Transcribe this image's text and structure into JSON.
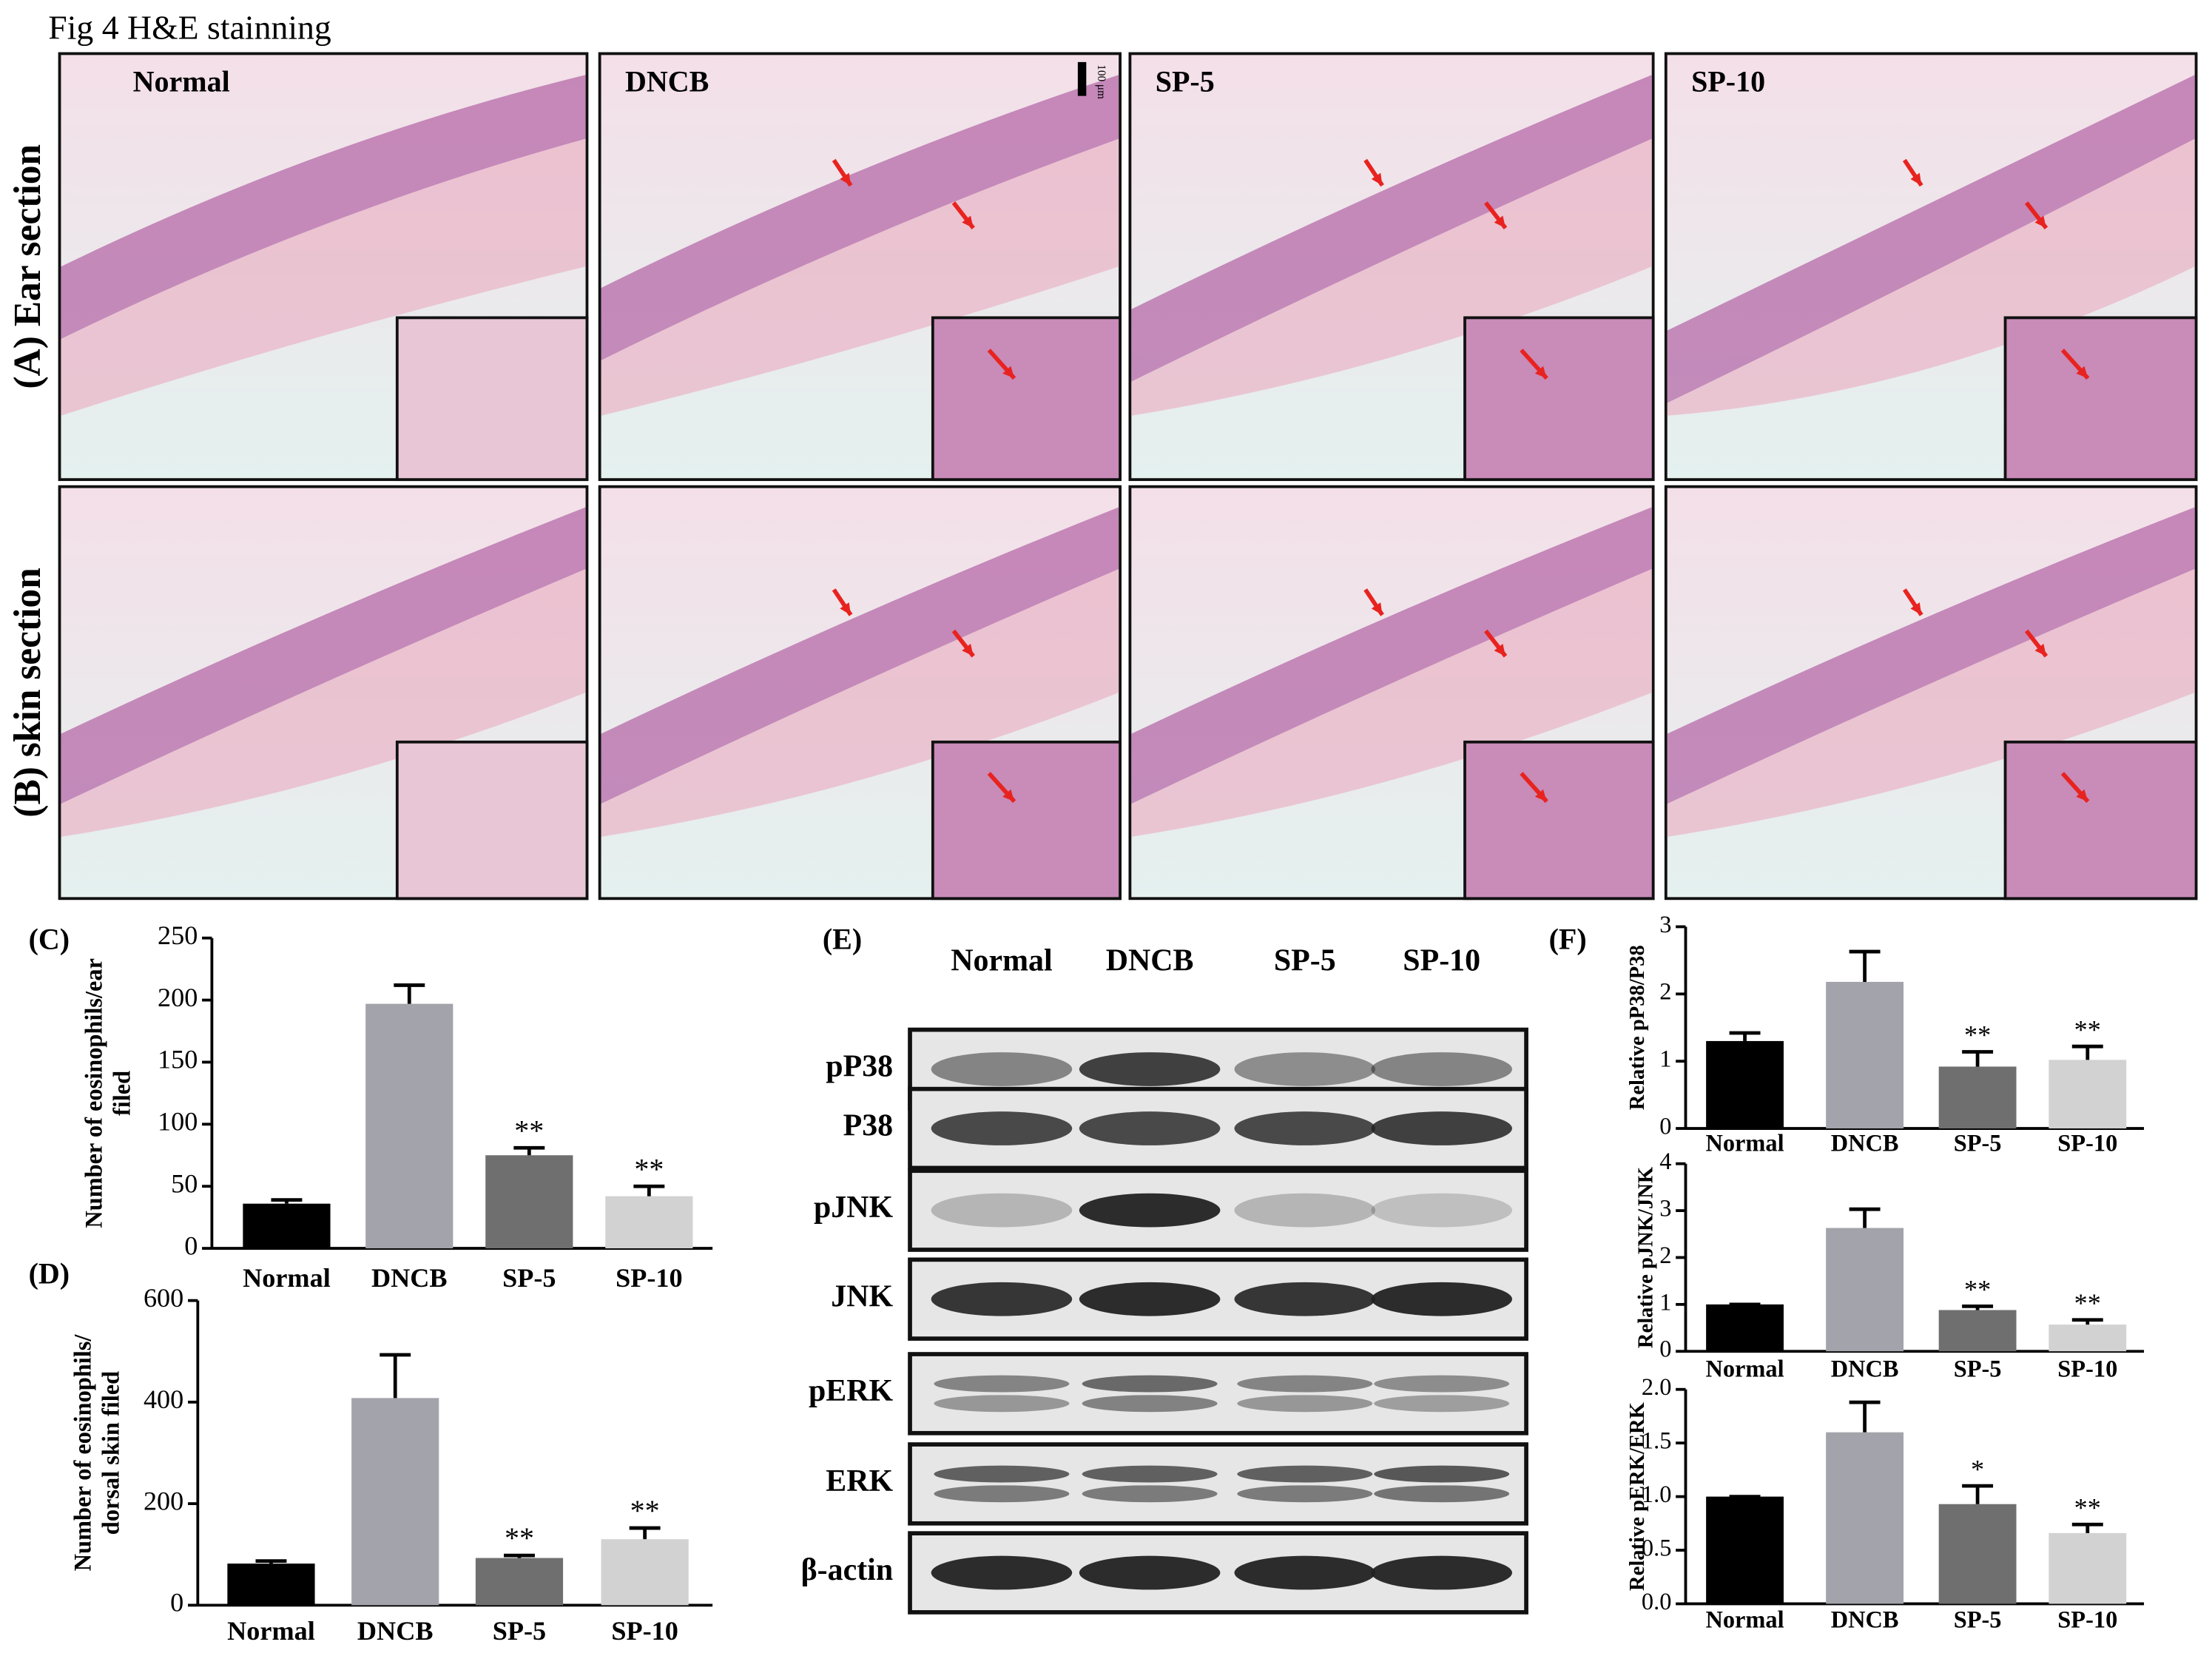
{
  "figure_title": "Fig 4  H&E stainning",
  "histology": {
    "rows": [
      "(A) Ear section",
      "(B) skin section"
    ],
    "groups": [
      "Normal",
      "DNCB",
      "SP-5",
      "SP-10"
    ],
    "scale_bar": "100 μm"
  },
  "western_blot": {
    "panel": "(E)",
    "lanes": [
      "Normal",
      "DNCB",
      "SP-5",
      "SP-10"
    ],
    "proteins": [
      "pP38",
      "P38",
      "pJNK",
      "JNK",
      "pERK",
      "ERK",
      "β-actin"
    ]
  },
  "chart_data": [
    {
      "type": "bar",
      "panel": "(C)",
      "y_label": [
        "Number of eosinophils/ear",
        "filed"
      ],
      "categories": [
        "Normal",
        "DNCB",
        "SP-5",
        "SP-10"
      ],
      "values": [
        36,
        197,
        75,
        42
      ],
      "errors": [
        3,
        15,
        6,
        8
      ],
      "significance": [
        null,
        null,
        "**",
        "**"
      ],
      "colors": [
        "#000000",
        "#a3a3ab",
        "#6f6f6f",
        "#d2d2d2"
      ],
      "ylim": [
        0,
        250
      ],
      "yticks": [
        0,
        50,
        100,
        150,
        200,
        250
      ]
    },
    {
      "type": "bar",
      "panel": "(D)",
      "y_label": [
        "Number of eosinophils/",
        "dorsal skin filed"
      ],
      "categories": [
        "Normal",
        "DNCB",
        "SP-5",
        "SP-10"
      ],
      "values": [
        82,
        408,
        93,
        130
      ],
      "errors": [
        5,
        85,
        5,
        22
      ],
      "significance": [
        null,
        null,
        "**",
        "**"
      ],
      "colors": [
        "#000000",
        "#a3a3ab",
        "#6f6f6f",
        "#d2d2d2"
      ],
      "ylim": [
        0,
        600
      ],
      "yticks": [
        0,
        200,
        400,
        600
      ]
    },
    {
      "type": "bar",
      "panel": "(F)",
      "y_label": [
        "Relative pP38/P38"
      ],
      "categories": [
        "Normal",
        "DNCB",
        "SP-5",
        "SP-10"
      ],
      "values": [
        1.3,
        2.18,
        0.92,
        1.02
      ],
      "errors": [
        0.12,
        0.45,
        0.22,
        0.2
      ],
      "significance": [
        null,
        null,
        "**",
        "**"
      ],
      "colors": [
        "#000000",
        "#a3a3ab",
        "#6f6f6f",
        "#d2d2d2"
      ],
      "ylim": [
        0,
        3
      ],
      "yticks": [
        0,
        1,
        2,
        3
      ]
    },
    {
      "type": "bar",
      "y_label": [
        "Relative pJNK/JNK"
      ],
      "categories": [
        "Normal",
        "DNCB",
        "SP-5",
        "SP-10"
      ],
      "values": [
        1.0,
        2.63,
        0.88,
        0.57
      ],
      "errors": [
        0,
        0.4,
        0.08,
        0.1
      ],
      "significance": [
        null,
        null,
        "**",
        "**"
      ],
      "colors": [
        "#000000",
        "#a3a3ab",
        "#6f6f6f",
        "#d2d2d2"
      ],
      "ylim": [
        0,
        4
      ],
      "yticks": [
        0,
        1,
        2,
        3,
        4
      ]
    },
    {
      "type": "bar",
      "y_label": [
        "Relative pERK/ERK"
      ],
      "categories": [
        "Normal",
        "DNCB",
        "SP-5",
        "SP-10"
      ],
      "values": [
        1.0,
        1.6,
        0.93,
        0.66
      ],
      "errors": [
        0,
        0.28,
        0.17,
        0.08
      ],
      "significance": [
        null,
        null,
        "*",
        "**"
      ],
      "colors": [
        "#000000",
        "#a3a3ab",
        "#6f6f6f",
        "#d2d2d2"
      ],
      "ylim": [
        0,
        2
      ],
      "yticks": [
        {
          "value": 0,
          "label": "0.0"
        },
        {
          "value": 0.5,
          "label": "0.5"
        },
        {
          "value": 1,
          "label": "1.0"
        },
        {
          "value": 1.5,
          "label": "1.5"
        },
        {
          "value": 2,
          "label": "2.0"
        }
      ]
    }
  ]
}
